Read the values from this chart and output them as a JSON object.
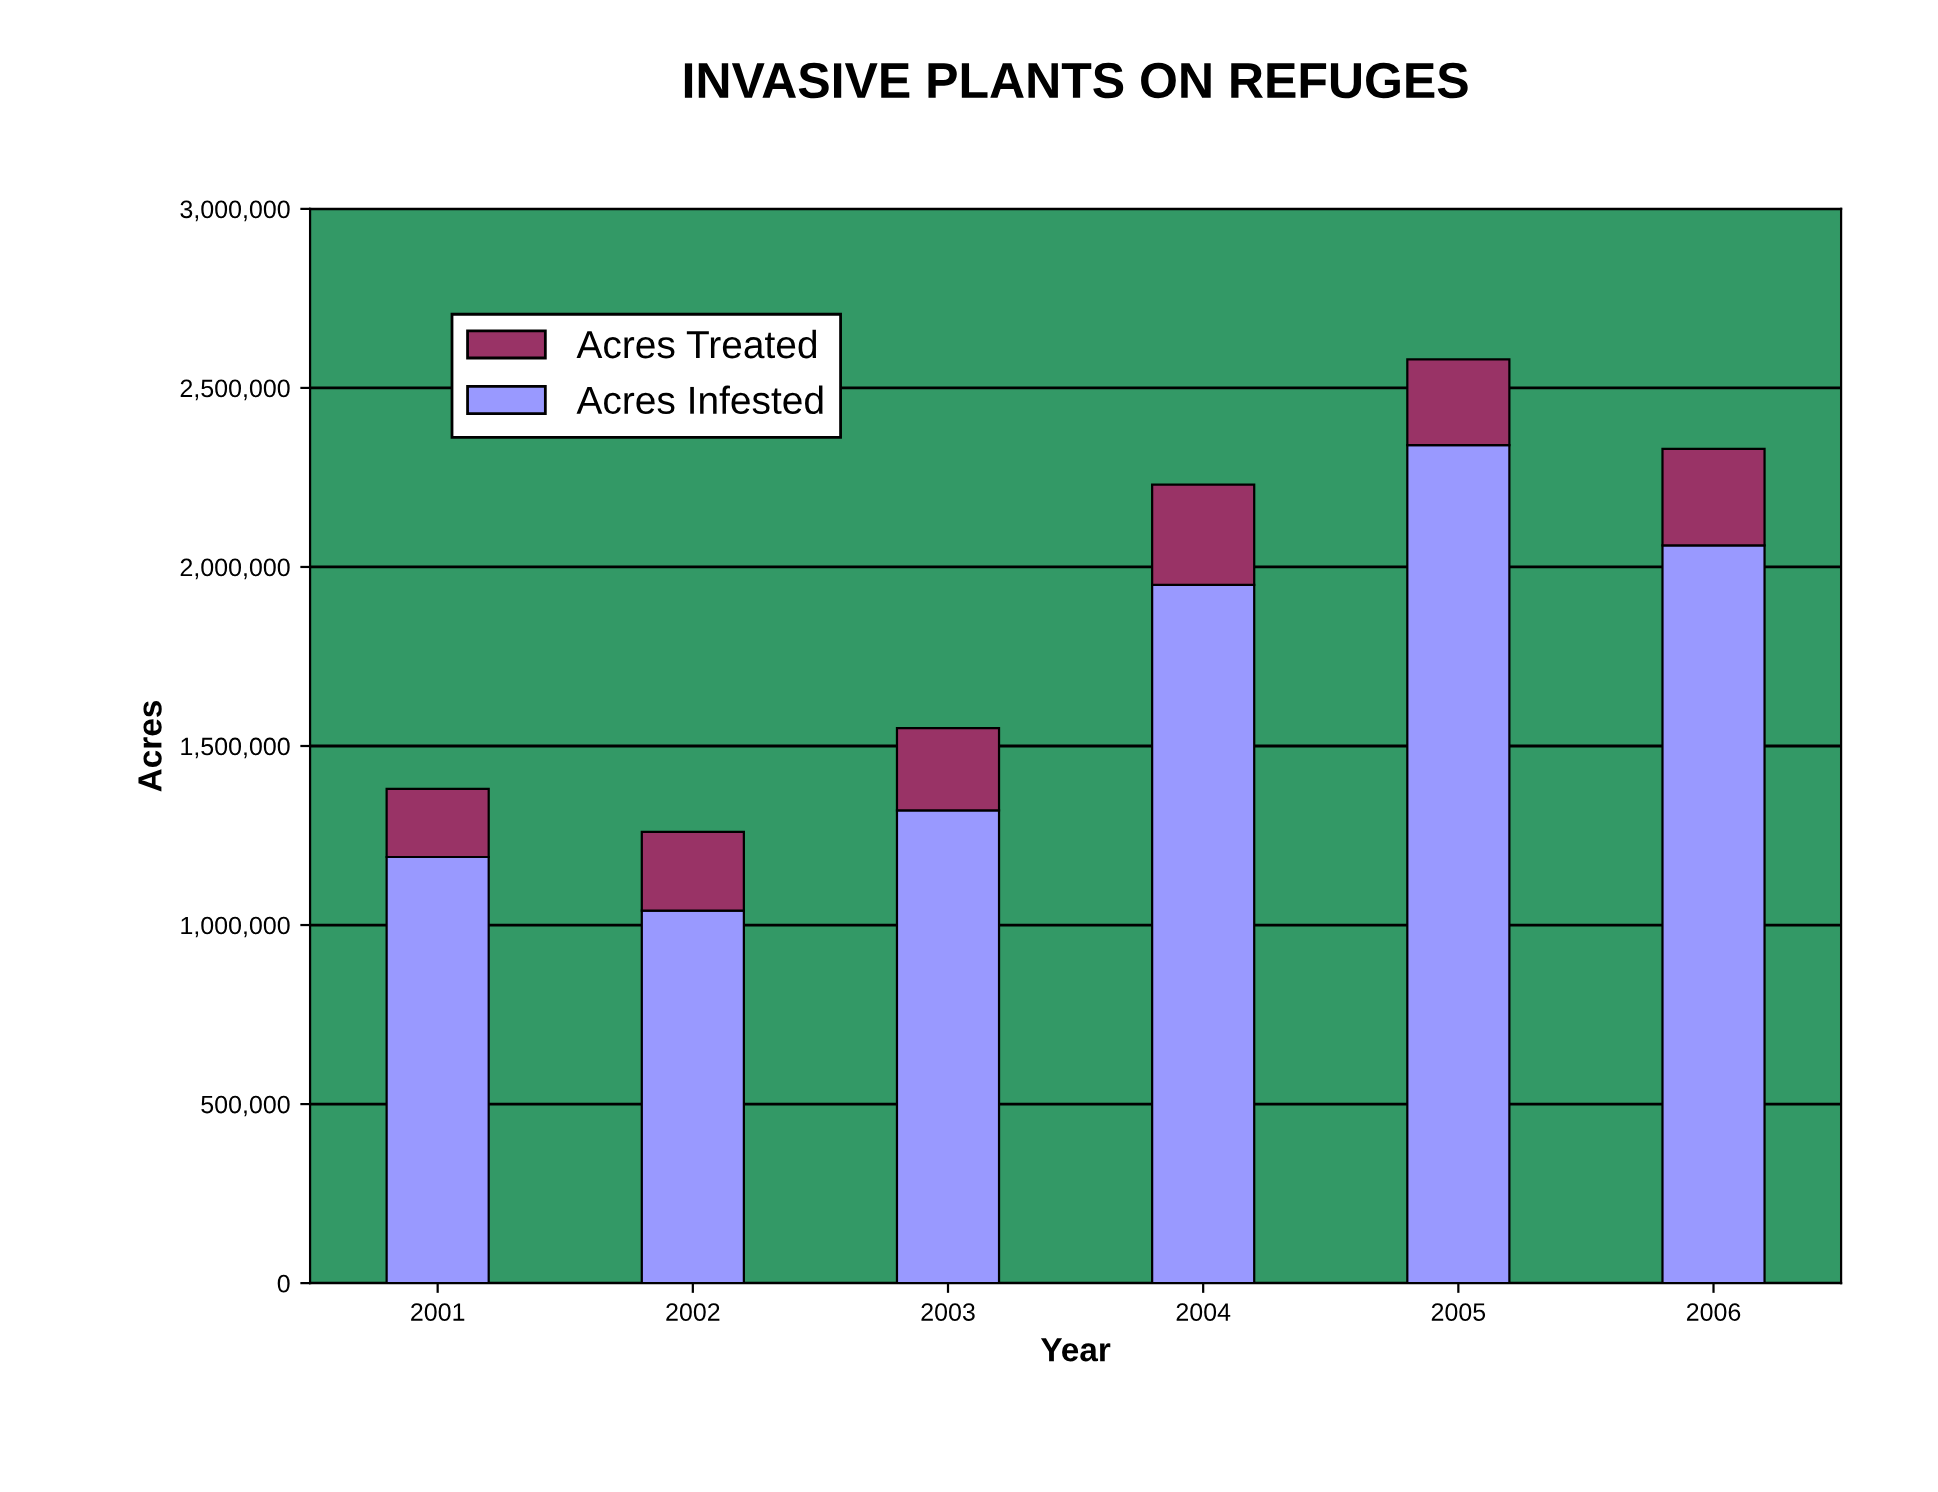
{
  "chart_data": {
    "type": "bar",
    "title": "INVASIVE PLANTS ON REFUGES",
    "xlabel": "Year",
    "ylabel": "Acres",
    "categories": [
      "2001",
      "2002",
      "2003",
      "2004",
      "2005",
      "2006"
    ],
    "series": [
      {
        "name": "Acres Infested",
        "color": "#9999ff",
        "values": [
          1190000,
          1040000,
          1320000,
          1950000,
          2340000,
          2060000
        ]
      },
      {
        "name": "Acres Treated",
        "color": "#993366",
        "values": [
          190000,
          220000,
          230000,
          280000,
          240000,
          270000
        ]
      }
    ],
    "stacked": true,
    "ylim": [
      0,
      3000000
    ],
    "yticks": [
      {
        "value": 0,
        "label": "0"
      },
      {
        "value": 500000,
        "label": "500,000"
      },
      {
        "value": 1000000,
        "label": "1,000,000"
      },
      {
        "value": 1500000,
        "label": "1,500,000"
      },
      {
        "value": 2000000,
        "label": "2,000,000"
      },
      {
        "value": 2500000,
        "label": "2,500,000"
      },
      {
        "value": 3000000,
        "label": "3,000,000"
      }
    ],
    "grid": "y",
    "legend": "top left"
  }
}
